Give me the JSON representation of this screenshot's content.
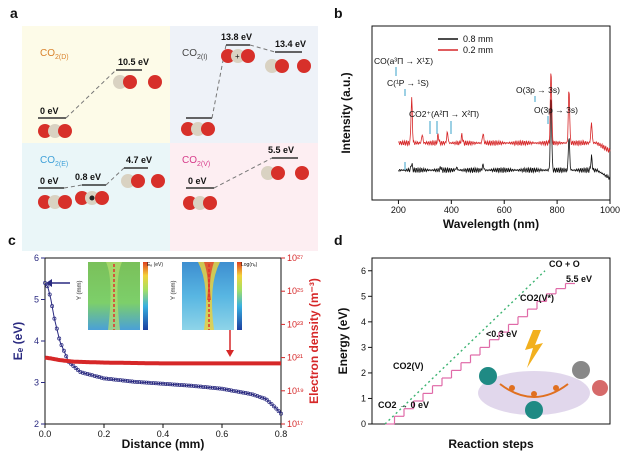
{
  "panel_a": {
    "label": "a",
    "boxes": [
      {
        "title": "CO2(D)",
        "title_color": "#d9822b",
        "bg": "#fdfbe8",
        "levels": [
          "0 eV",
          "10.5 eV"
        ]
      },
      {
        "title": "CO2(I)",
        "title_color": "#444444",
        "bg": "#eef2f8",
        "levels": [
          "13.8 eV",
          "13.4 eV"
        ]
      },
      {
        "title": "CO2(E)",
        "title_color": "#3ea0d8",
        "bg": "#eaf6f8",
        "levels": [
          "0 eV",
          "0.8 eV",
          "4.7 eV"
        ]
      },
      {
        "title": "CO2(V)",
        "title_color": "#d63b8a",
        "bg": "#fdeef2",
        "levels": [
          "0 eV",
          "5.5 eV"
        ]
      }
    ],
    "colors": {
      "oxygen": "#d7302a",
      "carbon": "#d9d2c2"
    }
  },
  "chart_data": [
    {
      "panel": "b",
      "type": "line",
      "xlabel": "Wavelength (nm)",
      "ylabel": "Intensity (a.u.)",
      "xlim": [
        100,
        1000
      ],
      "xticks": [
        200,
        400,
        600,
        800,
        1000
      ],
      "series": [
        {
          "name": "0.8 mm",
          "color": "#111111",
          "baseline": 0.22,
          "peaks": [
            [
              250,
              0.05
            ],
            [
              360,
              0.02
            ],
            [
              420,
              0.02
            ],
            [
              520,
              0.04
            ],
            [
              777,
              0.55
            ],
            [
              845,
              0.25
            ],
            [
              930,
              0.1
            ]
          ]
        },
        {
          "name": "0.2 mm",
          "color": "#d62728",
          "baseline": 0.42,
          "peaks": [
            [
              250,
              0.33
            ],
            [
              290,
              0.06
            ],
            [
              350,
              0.06
            ],
            [
              385,
              0.08
            ],
            [
              440,
              0.06
            ],
            [
              520,
              0.07
            ],
            [
              777,
              0.55
            ],
            [
              845,
              0.4
            ],
            [
              930,
              0.15
            ]
          ]
        }
      ],
      "annotations": [
        {
          "text": "CO(a³Π → X¹Σ)",
          "x": 230
        },
        {
          "text": "C(¹P → ¹S)",
          "x": 250
        },
        {
          "text": "CO2⁺(A²Π → X²Π)",
          "x": 380
        },
        {
          "text": "O(3p → 3s)",
          "x": 777
        },
        {
          "text": "O(3p → 3s)",
          "x": 845
        }
      ]
    },
    {
      "panel": "c",
      "type": "line",
      "xlabel": "Distance (mm)",
      "ylabel": "Eₑ (eV)",
      "y2label": "Electron density (m⁻³)",
      "xlim": [
        0,
        0.8
      ],
      "xticks": [
        "0.0",
        "0.2",
        "0.4",
        "0.6",
        "0.8"
      ],
      "ylim": [
        2,
        6
      ],
      "yticks": [
        "2",
        "3",
        "4",
        "5",
        "6"
      ],
      "y2lim_log": [
        17,
        27
      ],
      "y2ticks": [
        "10¹⁷",
        "10¹⁹",
        "10²¹",
        "10²³",
        "10²⁵",
        "10²⁷"
      ],
      "series": [
        {
          "name": "Eₑ",
          "color": "#2a2a80",
          "axis": "left",
          "x": [
            0,
            0.01,
            0.02,
            0.03,
            0.05,
            0.08,
            0.12,
            0.2,
            0.3,
            0.4,
            0.5,
            0.6,
            0.7,
            0.75,
            0.78,
            0.8
          ],
          "y": [
            5.4,
            5.3,
            5.0,
            4.6,
            4.0,
            3.5,
            3.25,
            3.1,
            3.02,
            2.97,
            2.92,
            2.85,
            2.72,
            2.6,
            2.4,
            2.25
          ]
        },
        {
          "name": "Electron density",
          "color": "#d62728",
          "axis": "right",
          "x": [
            0,
            0.02,
            0.05,
            0.1,
            0.2,
            0.4,
            0.6,
            0.8
          ],
          "log10": [
            21.0,
            20.95,
            20.85,
            20.75,
            20.7,
            20.65,
            20.65,
            20.65
          ]
        }
      ],
      "insets": [
        {
          "label": "Eₑ (eV)",
          "ticks": [
            "4",
            "3",
            "2",
            "1",
            "0"
          ],
          "ylabel": "Y (mm)",
          "yticks": [
            "0.8",
            "0.6",
            "0.4",
            "0.2",
            "0"
          ]
        },
        {
          "label": "Log(nₑ)",
          "ticks": [
            "22",
            "20",
            "18"
          ],
          "ylabel": "Y (mm)",
          "yticks": [
            "0.8",
            "0.6",
            "0.4",
            "0.2",
            "0"
          ]
        }
      ]
    },
    {
      "panel": "d",
      "type": "line",
      "xlabel": "Reaction steps",
      "ylabel": "Energy (eV)",
      "ylim": [
        0,
        6.5
      ],
      "yticks": [
        "0",
        "1",
        "2",
        "3",
        "4",
        "5",
        "6"
      ],
      "series": [
        {
          "name": "vibrational ladder",
          "color": "#e06aa8",
          "style": "steps",
          "y": [
            0,
            0.3,
            0.6,
            0.9,
            1.2,
            1.5,
            1.8,
            2.1,
            2.4,
            2.7,
            3.0,
            3.3,
            3.6,
            3.9,
            4.2,
            4.5,
            4.8,
            5.1,
            5.3,
            5.5
          ]
        },
        {
          "name": "direct",
          "color": "#3cb371",
          "style": "dotted",
          "y": [
            0,
            6.0
          ]
        }
      ],
      "annotations": [
        {
          "text": "CO2 → 0 eV"
        },
        {
          "text": "CO2(V)"
        },
        {
          "text": "<0.3 eV"
        },
        {
          "text": "CO2(V*)"
        },
        {
          "text": "CO + O"
        },
        {
          "text": "5.5 eV"
        }
      ]
    }
  ]
}
